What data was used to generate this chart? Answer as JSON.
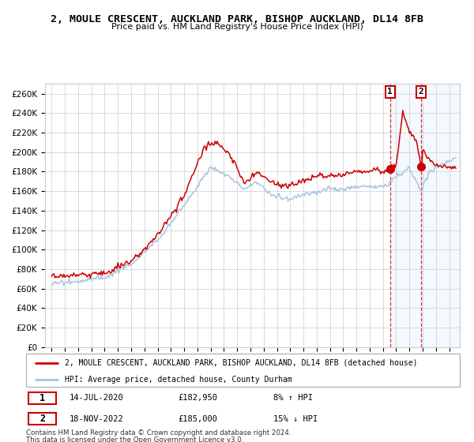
{
  "title": "2, MOULE CRESCENT, AUCKLAND PARK, BISHOP AUCKLAND, DL14 8FB",
  "subtitle": "Price paid vs. HM Land Registry's House Price Index (HPI)",
  "legend_line1": "2, MOULE CRESCENT, AUCKLAND PARK, BISHOP AUCKLAND, DL14 8FB (detached house)",
  "legend_line2": "HPI: Average price, detached house, County Durham",
  "annotation1_date": "14-JUL-2020",
  "annotation1_price": 182950,
  "annotation1_pct": "8% ↑ HPI",
  "annotation2_date": "18-NOV-2022",
  "annotation2_price": 185000,
  "annotation2_pct": "15% ↓ HPI",
  "footer1": "Contains HM Land Registry data © Crown copyright and database right 2024.",
  "footer2": "This data is licensed under the Open Government Licence v3.0.",
  "hpi_color": "#aac4e0",
  "price_color": "#cc0000",
  "marker_color": "#cc0000",
  "point1_x": 2020.54,
  "point2_x": 2022.88,
  "background_highlight": "#ddeeff",
  "ylim_min": 0,
  "ylim_max": 270000,
  "xlim_min": 1994.5,
  "xlim_max": 2025.8
}
